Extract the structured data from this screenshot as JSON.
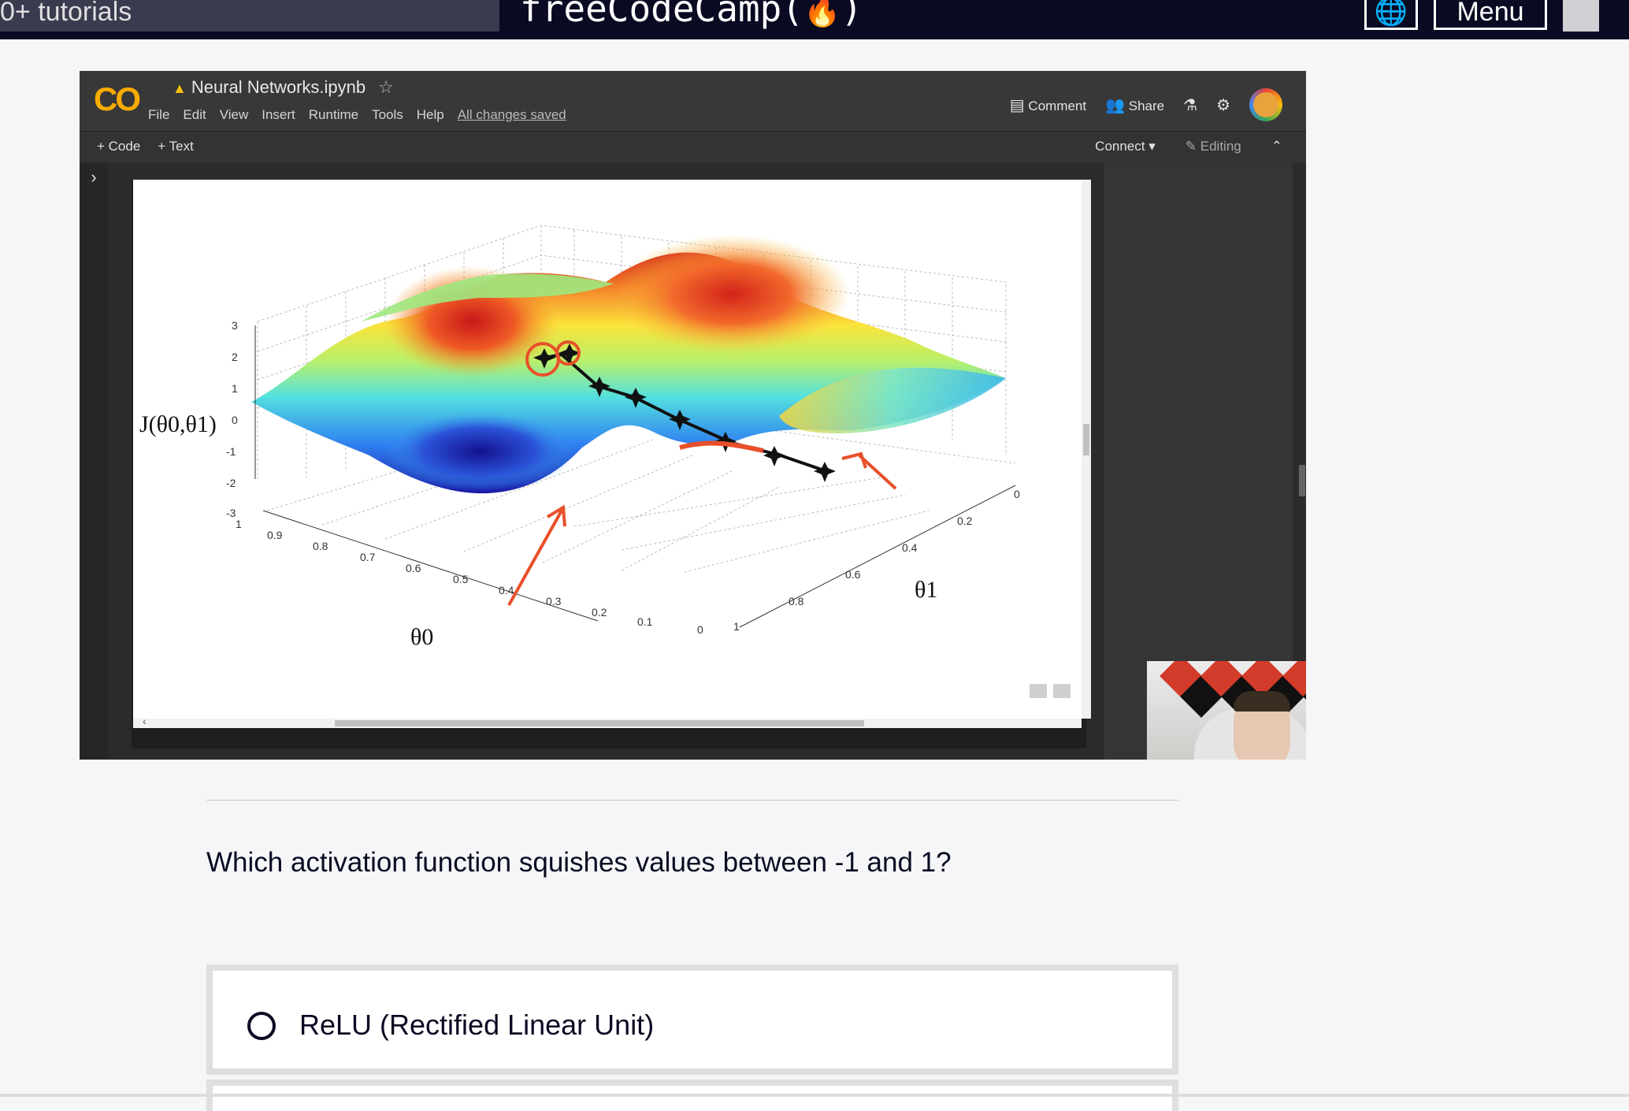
{
  "topnav": {
    "search_text": "0+ tutorials",
    "logo_text": "freeCodeCamp(",
    "logo_fire": "🔥",
    "logo_close": ")",
    "globe_icon": "🌐",
    "menu_label": "Menu"
  },
  "colab": {
    "logo": "CO",
    "title": "Neural Networks.ipynb",
    "menu": [
      "File",
      "Edit",
      "View",
      "Insert",
      "Runtime",
      "Tools",
      "Help"
    ],
    "saved_status": "All changes saved",
    "comment_label": "Comment",
    "share_label": "Share",
    "add_code_label": "+ Code",
    "add_text_label": "+ Text",
    "connect_label": "Connect",
    "editing_label": "Editing"
  },
  "plot": {
    "z_label": "J(θ0,θ1)",
    "z_ticks": [
      "3",
      "2",
      "1",
      "0",
      "-1",
      "-2",
      "-3"
    ],
    "theta0_label": "θ0",
    "theta0_ticks": [
      "1",
      "0.9",
      "0.8",
      "0.7",
      "0.6",
      "0.5",
      "0.4",
      "0.3",
      "0.2",
      "0.1",
      "0"
    ],
    "theta1_label": "θ1",
    "theta1_ticks": [
      "1",
      "0.8",
      "0.6",
      "0.4",
      "0.2",
      "0"
    ]
  },
  "question": {
    "text": "Which activation function squishes values between -1 and 1?",
    "answers": [
      "ReLU (Rectified Linear Unit)"
    ]
  },
  "colors": {
    "nav_bg": "#0a0a23",
    "colab_orange": "#f9ab00",
    "annotation_red": "#e8502a"
  }
}
